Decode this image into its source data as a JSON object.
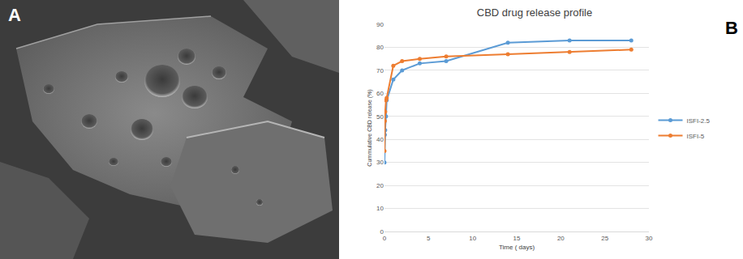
{
  "panel_labels": [
    "A",
    "B"
  ],
  "chart_data": {
    "type": "line",
    "title": "CBD drug release profile",
    "x_label": "Time ( days)",
    "y_label": "Cummulative CBD release (%)",
    "xlim": [
      0,
      30
    ],
    "xticks": [
      0,
      5,
      10,
      15,
      20,
      25,
      30
    ],
    "ylim": [
      0,
      90
    ],
    "yticks": [
      0,
      10,
      20,
      30,
      40,
      50,
      60,
      70,
      80,
      90
    ],
    "grid": true,
    "legend": "right",
    "series": [
      {
        "name": "ISFI-2.5",
        "color": "#5b9bd5",
        "marker": "circle",
        "line_style": "solid",
        "x": [
          0,
          0.04,
          0.08,
          0.17,
          0.25,
          1,
          2,
          4,
          7,
          14,
          21,
          28
        ],
        "values": [
          30,
          42,
          44,
          50,
          57,
          66,
          70,
          73,
          74,
          82,
          83,
          83
        ]
      },
      {
        "name": "ISFI-5",
        "color": "#ed7d31",
        "marker": "circle",
        "line_style": "solid",
        "x": [
          0,
          0.04,
          0.08,
          0.17,
          0.25,
          1,
          2,
          4,
          7,
          14,
          21,
          28
        ],
        "values": [
          35,
          48,
          52,
          57,
          58,
          72,
          74,
          75,
          76,
          77,
          78,
          79
        ]
      }
    ]
  }
}
